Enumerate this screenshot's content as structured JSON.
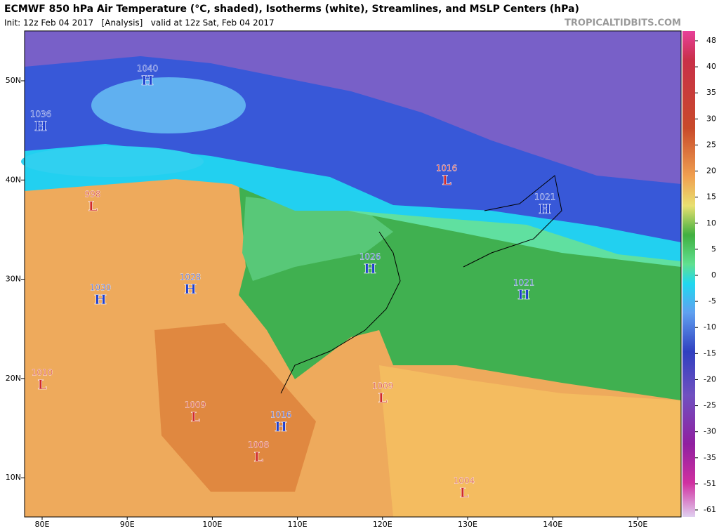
{
  "header": {
    "title": "ECMWF 850 hPa Air Temperature (°C, shaded), Isotherms (white), Streamlines, and MSLP Centers (hPa)",
    "subtitle": "Init: 12z Feb 04 2017   [Analysis]   valid at 12z Sat, Feb 04 2017",
    "watermark": "TROPICALTIDBITS.COM"
  },
  "map": {
    "lat_labels": [
      "50N",
      "40N",
      "30N",
      "20N",
      "10N"
    ],
    "lon_labels": [
      "80E",
      "90E",
      "100E",
      "110E",
      "120E",
      "130E",
      "140E",
      "150E"
    ],
    "centers": [
      {
        "pressure": "1040",
        "type": "H"
      },
      {
        "pressure": "1036",
        "type": "H"
      },
      {
        "pressure": "998",
        "type": "L"
      },
      {
        "pressure": "1016",
        "type": "L"
      },
      {
        "pressure": "1021",
        "type": "H"
      },
      {
        "pressure": "1026",
        "type": "H"
      },
      {
        "pressure": "1021",
        "type": "H"
      },
      {
        "pressure": "1030",
        "type": "H"
      },
      {
        "pressure": "1028",
        "type": "H"
      },
      {
        "pressure": "1010",
        "type": "L"
      },
      {
        "pressure": "1009",
        "type": "L"
      },
      {
        "pressure": "1009",
        "type": "L"
      },
      {
        "pressure": "1016",
        "type": "H"
      },
      {
        "pressure": "1008",
        "type": "L"
      },
      {
        "pressure": "1004",
        "type": "L"
      }
    ],
    "center_colors": {
      "H": "#1f3fcf",
      "L": "#d02a2a"
    }
  },
  "colorbar": {
    "ticks": [
      48,
      40,
      35,
      30,
      25,
      20,
      15,
      10,
      5,
      0,
      -5,
      -10,
      -15,
      -20,
      -25,
      -30,
      -35,
      -51,
      -61
    ]
  }
}
